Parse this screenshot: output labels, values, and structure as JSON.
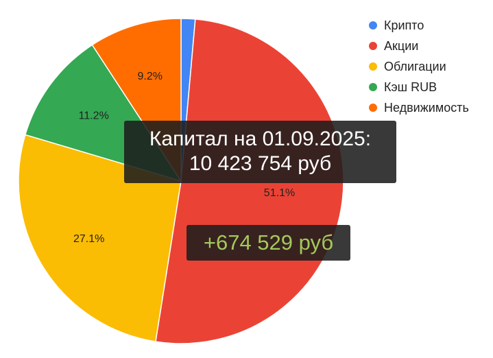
{
  "chart_data": {
    "type": "pie",
    "start_angle_deg": 0,
    "slices": [
      {
        "name": "Крипто",
        "value": 1.4,
        "label": "",
        "color": "#4285f4"
      },
      {
        "name": "Акции",
        "value": 51.1,
        "label": "51.1%",
        "color": "#ea4335"
      },
      {
        "name": "Облигации",
        "value": 27.1,
        "label": "27.1%",
        "color": "#fbbc04"
      },
      {
        "name": "Кэш RUB",
        "value": 11.2,
        "label": "11.2%",
        "color": "#34a853"
      },
      {
        "name": "Недвижимость",
        "value": 9.2,
        "label": "9.2%",
        "color": "#ff6d01"
      }
    ],
    "legend_position": "top-right"
  },
  "overlay": {
    "capital_line1": "Капитал на 01.09.2025:",
    "capital_line2": "10 423 754 руб",
    "delta": "+674 529 руб",
    "delta_color": "#a4c95a"
  }
}
